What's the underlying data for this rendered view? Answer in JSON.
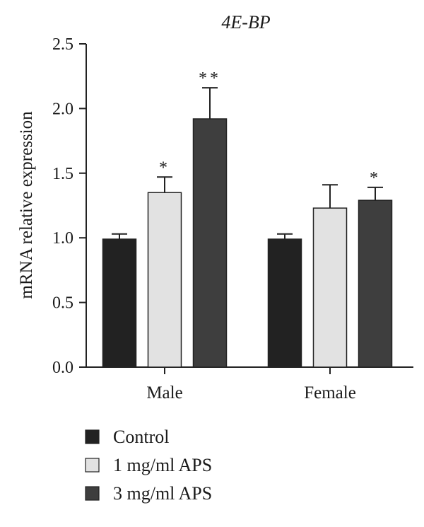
{
  "chart_data": {
    "type": "bar",
    "title": "4E-BP",
    "xlabel": "",
    "ylabel": "mRNA relative expression",
    "ylim": [
      0,
      2.5
    ],
    "yticks": [
      "0.0",
      "0.5",
      "1.0",
      "1.5",
      "2.0",
      "2.5"
    ],
    "categories": [
      "Male",
      "Female"
    ],
    "series": [
      {
        "name": "Control",
        "color": "#222222",
        "values": [
          0.99,
          0.99
        ],
        "errors": [
          0.04,
          0.04
        ],
        "significance": [
          "",
          ""
        ]
      },
      {
        "name": "1 mg/ml APS",
        "color": "#e2e2e2",
        "values": [
          1.35,
          1.23
        ],
        "errors": [
          0.12,
          0.18
        ],
        "significance": [
          "*",
          ""
        ]
      },
      {
        "name": "3 mg/ml APS",
        "color": "#3e3e3e",
        "values": [
          1.92,
          1.29
        ],
        "errors": [
          0.24,
          0.1
        ],
        "significance": [
          "**",
          "*"
        ]
      }
    ],
    "legend_position": "bottom-left",
    "grid": false
  }
}
